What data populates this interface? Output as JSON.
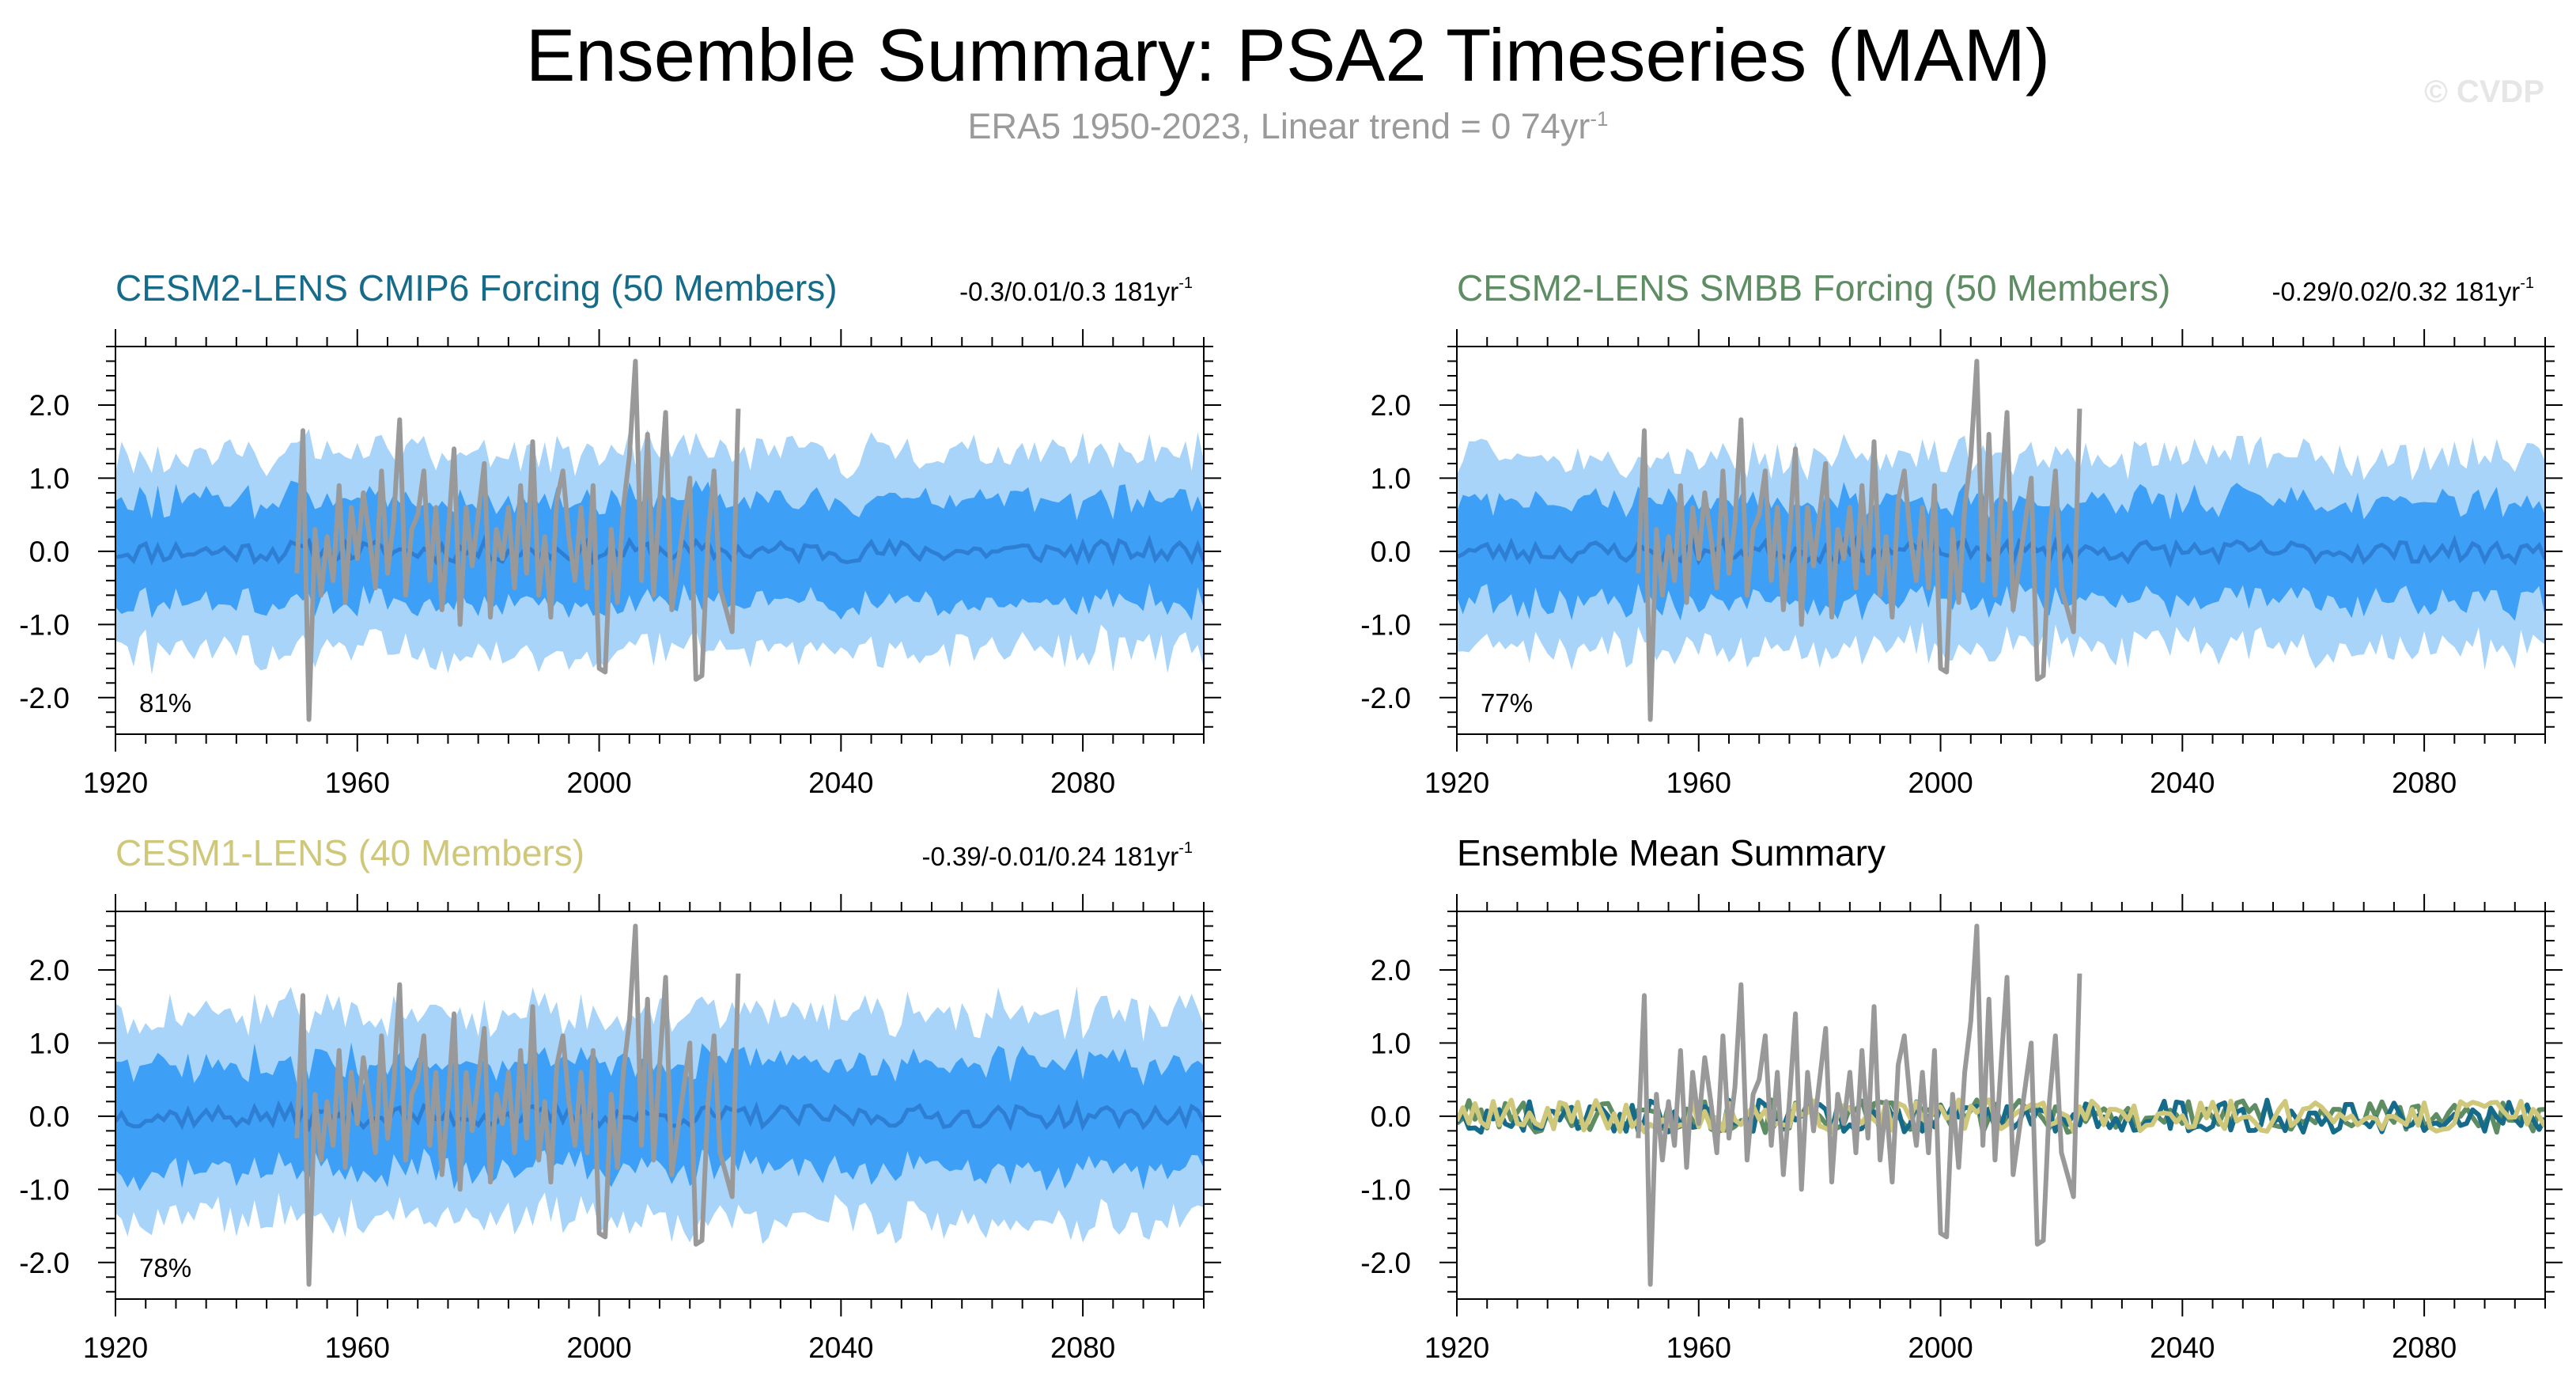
{
  "page": {
    "title": "Ensemble Summary: PSA2 Timeseries (MAM)",
    "subtitle_text": "ERA5 1950-2023, Linear trend = 0 74yr",
    "subtitle_exp": "-1",
    "watermark": "© CVDP"
  },
  "colors": {
    "band_outer": "#a8d4fa",
    "band_inner": "#3d9ff5",
    "ensemble_mean": "#2e7fd4",
    "observations": "#999999",
    "cesm2_cmip6": "#166b8a",
    "cesm2_smbb": "#5e8c63",
    "cesm1": "#cfc77a",
    "summary_title": "#000000"
  },
  "chart_data": [
    {
      "id": "cesm2-cmip6",
      "type": "area",
      "title": "CESM2-LENS CMIP6 Forcing (50 Members)",
      "title_color": "#166b8a",
      "stats_text": "-0.3/0.01/0.3 181yr",
      "stats_exp": "-1",
      "percent_label": "81%",
      "x_range": [
        1920,
        2100
      ],
      "ylim": [
        -2.5,
        2.8
      ],
      "x_ticks": [
        1920,
        1960,
        2000,
        2040,
        2080
      ],
      "y_ticks": [
        "-2.0",
        "-1.0",
        "0.0",
        "1.0",
        "2.0"
      ],
      "band_outer_half_width": 1.35,
      "band_inner_half_width": 0.7,
      "band_wiggle": 0.22,
      "seed": 11,
      "series": [
        {
          "role": "band-outer",
          "color": "#a8d4fa"
        },
        {
          "role": "band-inner",
          "color": "#3d9ff5"
        },
        {
          "role": "ensemble-mean",
          "color": "#2e7fd4"
        },
        {
          "role": "observations",
          "color": "#999999"
        }
      ]
    },
    {
      "id": "cesm2-smbb",
      "type": "area",
      "title": "CESM2-LENS SMBB Forcing (50 Members)",
      "title_color": "#5e8c63",
      "stats_text": "-0.29/0.02/0.32 181yr",
      "stats_exp": "-1",
      "percent_label": "77%",
      "x_range": [
        1920,
        2100
      ],
      "ylim": [
        -2.5,
        2.8
      ],
      "x_ticks": [
        1920,
        1960,
        2000,
        2040,
        2080
      ],
      "y_ticks": [
        "-2.0",
        "-1.0",
        "0.0",
        "1.0",
        "2.0"
      ],
      "band_outer_half_width": 1.3,
      "band_inner_half_width": 0.68,
      "band_wiggle": 0.2,
      "seed": 23,
      "series": [
        {
          "role": "band-outer",
          "color": "#a8d4fa"
        },
        {
          "role": "band-inner",
          "color": "#3d9ff5"
        },
        {
          "role": "ensemble-mean",
          "color": "#2e7fd4"
        },
        {
          "role": "observations",
          "color": "#999999"
        }
      ]
    },
    {
      "id": "cesm1",
      "type": "area",
      "title": "CESM1-LENS (40 Members)",
      "title_color": "#cfc77a",
      "stats_text": "-0.39/-0.01/0.24 181yr",
      "stats_exp": "-1",
      "percent_label": "78%",
      "x_range": [
        1920,
        2100
      ],
      "ylim": [
        -2.5,
        2.8
      ],
      "x_ticks": [
        1920,
        1960,
        2000,
        2040,
        2080
      ],
      "y_ticks": [
        "-2.0",
        "-1.0",
        "0.0",
        "1.0",
        "2.0"
      ],
      "band_outer_half_width": 1.4,
      "band_inner_half_width": 0.72,
      "band_wiggle": 0.24,
      "seed": 37,
      "series": [
        {
          "role": "band-outer",
          "color": "#a8d4fa"
        },
        {
          "role": "band-inner",
          "color": "#3d9ff5"
        },
        {
          "role": "ensemble-mean",
          "color": "#2e7fd4"
        },
        {
          "role": "observations",
          "color": "#999999"
        }
      ]
    },
    {
      "id": "ensemble-mean-summary",
      "type": "line",
      "title": "Ensemble Mean Summary",
      "title_color": "#000000",
      "x_range": [
        1920,
        2100
      ],
      "ylim": [
        -2.5,
        2.8
      ],
      "x_ticks": [
        1920,
        1960,
        2000,
        2040,
        2080
      ],
      "y_ticks": [
        "-2.0",
        "-1.0",
        "0.0",
        "1.0",
        "2.0"
      ],
      "series": [
        {
          "role": "cesm2-smbb-mean",
          "color": "#5e8c63",
          "seed": 101
        },
        {
          "role": "cesm2-cmip6-mean",
          "color": "#166b8a",
          "seed": 202
        },
        {
          "role": "cesm1-mean",
          "color": "#cfc77a",
          "seed": 303
        },
        {
          "role": "observations",
          "color": "#999999"
        }
      ]
    }
  ],
  "observations": {
    "years": [
      1950,
      1951,
      1952,
      1953,
      1954,
      1955,
      1956,
      1957,
      1958,
      1959,
      1960,
      1961,
      1962,
      1963,
      1964,
      1965,
      1966,
      1967,
      1968,
      1969,
      1970,
      1971,
      1972,
      1973,
      1974,
      1975,
      1976,
      1977,
      1978,
      1979,
      1980,
      1981,
      1982,
      1983,
      1984,
      1985,
      1986,
      1987,
      1988,
      1989,
      1990,
      1991,
      1992,
      1993,
      1994,
      1995,
      1996,
      1997,
      1998,
      1999,
      2000,
      2001,
      2002,
      2003,
      2004,
      2005,
      2006,
      2007,
      2008,
      2009,
      2010,
      2011,
      2012,
      2013,
      2014,
      2015,
      2016,
      2017,
      2018,
      2019,
      2020,
      2021,
      2022,
      2023
    ],
    "values": [
      -0.3,
      1.65,
      -2.3,
      0.3,
      -0.6,
      0.2,
      -0.4,
      0.9,
      -0.7,
      0.6,
      -0.1,
      0.8,
      0.2,
      -0.5,
      1.1,
      -0.3,
      0.4,
      1.8,
      -0.6,
      0.3,
      0.5,
      1.1,
      -0.4,
      0.6,
      -0.8,
      0.2,
      1.4,
      -1.0,
      0.6,
      -0.2,
      0.5,
      1.2,
      -0.9,
      0.3,
      -0.1,
      0.6,
      -0.5,
      0.9,
      -0.3,
      1.5,
      -0.6,
      0.2,
      -0.9,
      0.7,
      1.1,
      0.2,
      -0.4,
      0.6,
      -0.5,
      0.9,
      -1.6,
      -1.65,
      0.3,
      -0.7,
      0.6,
      1.3,
      2.6,
      -0.4,
      1.6,
      -0.6,
      0.7,
      1.9,
      -0.8,
      -0.2,
      0.4,
      1.0,
      -1.75,
      -1.7,
      0.2,
      1.1,
      -0.5,
      -0.8,
      -1.1,
      1.95
    ]
  },
  "axes": {
    "y_axis_label": "",
    "x_axis_label": ""
  }
}
